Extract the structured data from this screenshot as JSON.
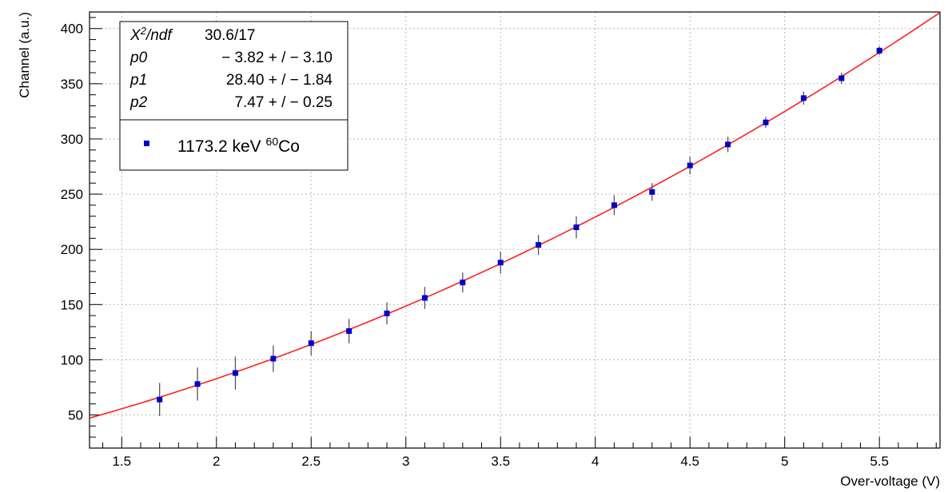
{
  "chart_data": {
    "type": "scatter",
    "xlabel": "Over-voltage (V)",
    "ylabel": "Channel (a.u.)",
    "xlim": [
      1.33,
      5.82
    ],
    "ylim": [
      20,
      415
    ],
    "grid": true,
    "x_ticks": [
      1.5,
      2,
      2.5,
      3,
      3.5,
      4,
      4.5,
      5,
      5.5
    ],
    "x_tick_labels": [
      "1.5",
      "2",
      "2.5",
      "3",
      "3.5",
      "4",
      "4.5",
      "5",
      "5.5"
    ],
    "y_ticks": [
      50,
      100,
      150,
      200,
      250,
      300,
      350,
      400
    ],
    "y_tick_labels": [
      "50",
      "100",
      "150",
      "200",
      "250",
      "300",
      "350",
      "400"
    ],
    "series": [
      {
        "name": "1173.2 keV 60Co",
        "color": "#0000cc",
        "marker": "square",
        "x": [
          1.7,
          1.9,
          2.1,
          2.3,
          2.5,
          2.7,
          2.9,
          3.1,
          3.3,
          3.5,
          3.7,
          3.9,
          4.1,
          4.3,
          4.5,
          4.7,
          4.9,
          5.1,
          5.3,
          5.5
        ],
        "y": [
          64,
          78,
          88,
          101,
          115,
          126,
          142,
          156,
          170,
          188,
          204,
          220,
          240,
          252,
          276,
          295,
          315,
          337,
          355,
          380
        ],
        "yerr": [
          15,
          15,
          15,
          12,
          11,
          11,
          10,
          10,
          9,
          10,
          9,
          10,
          9,
          8,
          8,
          7,
          5,
          6,
          5,
          4
        ]
      }
    ],
    "fit": {
      "color": "#ff2020",
      "p0": -3.82,
      "p1": 28.4,
      "p2": 7.47,
      "x_range": [
        1.33,
        5.82
      ]
    },
    "stats_box": {
      "rows": [
        {
          "label_main": "X",
          "label_sup": "2",
          "label_rest": "/ndf",
          "value": "30.6/17"
        },
        {
          "label": "p0",
          "value": "− 3.82 + / − 3.10"
        },
        {
          "label": "p1",
          "value": "28.40 + / − 1.84"
        },
        {
          "label": "p2",
          "value": "7.47 + / − 0.25"
        }
      ]
    },
    "legend": {
      "position": "top-left",
      "text_main": "1173.2 keV ",
      "text_sup": "60",
      "text_rest": "Co"
    }
  }
}
